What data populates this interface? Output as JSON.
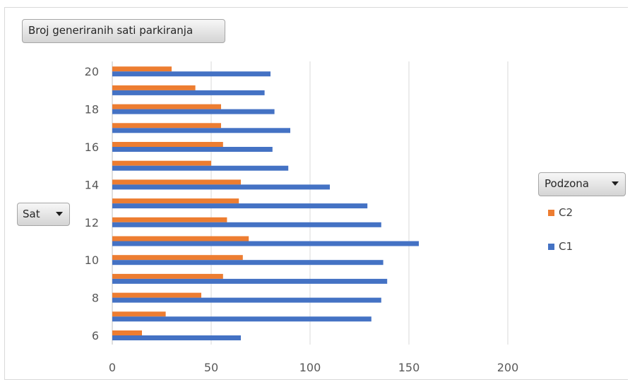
{
  "title_button": {
    "label": "Broj generiranih sati parkiranja"
  },
  "axis_button": {
    "label": "Sat"
  },
  "legend_button": {
    "label": "Podzona"
  },
  "legend": {
    "items": [
      {
        "name": "C2",
        "color": "#ED7D31"
      },
      {
        "name": "C1",
        "color": "#4472C4"
      }
    ]
  },
  "chart_data": {
    "type": "bar",
    "orientation": "horizontal",
    "categories": [
      6,
      7,
      8,
      9,
      10,
      11,
      12,
      13,
      14,
      15,
      16,
      17,
      18,
      19,
      20
    ],
    "y_tick_labels": [
      "6",
      "8",
      "10",
      "12",
      "14",
      "16",
      "18",
      "20"
    ],
    "x_tick_labels": [
      "0",
      "50",
      "100",
      "150",
      "200"
    ],
    "xlim": [
      0,
      250
    ],
    "grid": true,
    "legend_position": "right",
    "series": [
      {
        "name": "C2",
        "color": "#ED7D31",
        "values": [
          15,
          27,
          45,
          56,
          66,
          69,
          58,
          64,
          65,
          50,
          56,
          55,
          55,
          42,
          30
        ]
      },
      {
        "name": "C1",
        "color": "#4472C4",
        "values": [
          65,
          131,
          136,
          139,
          137,
          155,
          136,
          129,
          110,
          89,
          81,
          90,
          82,
          77,
          80
        ]
      }
    ]
  }
}
